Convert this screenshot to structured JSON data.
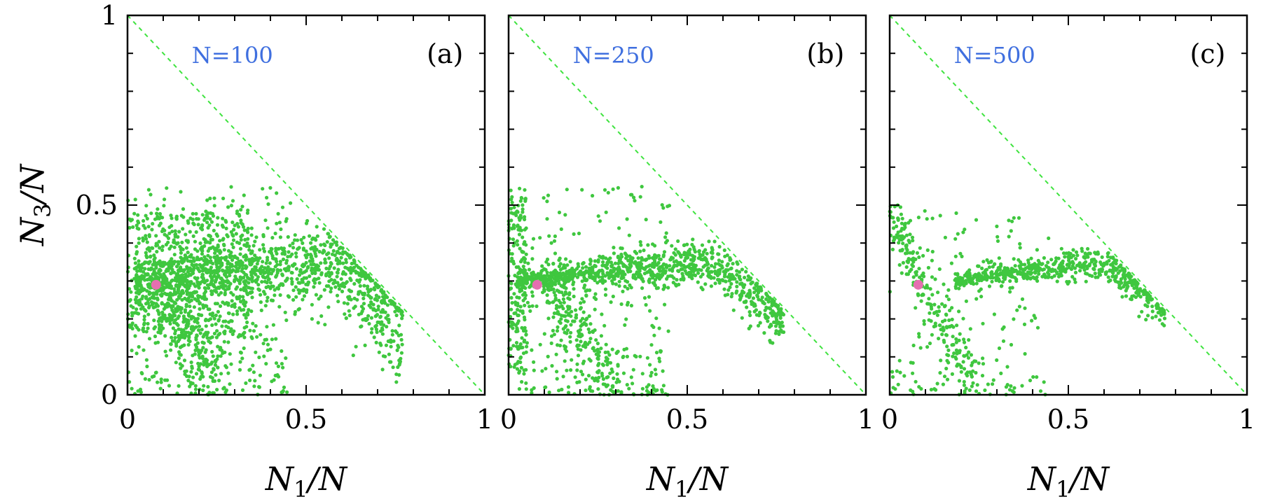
{
  "colors": {
    "points": "#3fc73f",
    "reference_line": "#3fe33f",
    "highlight": "#e56fb0",
    "annotation": "#3f6fdf",
    "axes": "#000000"
  },
  "chart_data": [
    {
      "type": "scatter",
      "panel_label": "(a)",
      "annotation": "N=100",
      "xlabel": "N1/N",
      "xlabel_main": "N",
      "xlabel_sub": "1",
      "xlabel_tail": "/N",
      "ylabel": "N3/N",
      "ylabel_main": "N",
      "ylabel_sub": "3",
      "ylabel_tail": "/N",
      "xlim": [
        0,
        1
      ],
      "ylim": [
        0,
        1
      ],
      "xticks": [
        "0",
        "0.5",
        "1"
      ],
      "yticks": [
        "0",
        "0.5",
        "1"
      ],
      "reference_line": {
        "from": [
          0,
          1
        ],
        "to": [
          1,
          0
        ],
        "style": "dashed"
      },
      "highlight_point": {
        "x": 0.08,
        "y": 0.29
      },
      "point_count": 2200,
      "clusters": [
        {
          "shape": "arc",
          "x_range": [
            0.02,
            0.77
          ],
          "peak": 0.34,
          "end_y": 0.18,
          "spread": 0.05,
          "share": 0.5
        },
        {
          "shape": "band",
          "x_range": [
            0.0,
            0.35
          ],
          "y_range": [
            0.15,
            0.48
          ],
          "share": 0.25
        },
        {
          "shape": "branch",
          "from": [
            0.1,
            0.28
          ],
          "to": [
            0.24,
            0.02
          ],
          "spread": 0.04,
          "share": 0.12
        },
        {
          "shape": "scatter",
          "x_range": [
            0.0,
            0.45
          ],
          "y_range": [
            0.0,
            0.55
          ],
          "share": 0.13
        }
      ]
    },
    {
      "type": "scatter",
      "panel_label": "(b)",
      "annotation": "N=250",
      "xlabel": "N1/N",
      "xlabel_main": "N",
      "xlabel_sub": "1",
      "xlabel_tail": "/N",
      "xlim": [
        0,
        1
      ],
      "ylim": [
        0,
        1
      ],
      "xticks": [
        "0",
        "0.5",
        "1"
      ],
      "reference_line": {
        "from": [
          0,
          1
        ],
        "to": [
          1,
          0
        ],
        "style": "dashed"
      },
      "highlight_point": {
        "x": 0.08,
        "y": 0.29
      },
      "point_count": 1600,
      "clusters": [
        {
          "shape": "arc",
          "x_range": [
            0.02,
            0.77
          ],
          "peak": 0.34,
          "end_y": 0.2,
          "spread": 0.025,
          "share": 0.6
        },
        {
          "shape": "branch",
          "from": [
            0.12,
            0.28
          ],
          "to": [
            0.3,
            0.01
          ],
          "spread": 0.025,
          "share": 0.12
        },
        {
          "shape": "band",
          "x_range": [
            0.0,
            0.05
          ],
          "y_range": [
            0.05,
            0.52
          ],
          "share": 0.1
        },
        {
          "shape": "scatter",
          "x_range": [
            0.0,
            0.45
          ],
          "y_range": [
            0.0,
            0.55
          ],
          "share": 0.18
        }
      ]
    },
    {
      "type": "scatter",
      "panel_label": "(c)",
      "annotation": "N=500",
      "xlabel": "N1/N",
      "xlabel_main": "N",
      "xlabel_sub": "1",
      "xlabel_tail": "/N",
      "xlim": [
        0,
        1
      ],
      "ylim": [
        0,
        1
      ],
      "xticks": [
        "0",
        "0.5",
        "1"
      ],
      "reference_line": {
        "from": [
          0,
          1
        ],
        "to": [
          1,
          0
        ],
        "style": "dashed"
      },
      "highlight_point": {
        "x": 0.08,
        "y": 0.29
      },
      "point_count": 1000,
      "clusters": [
        {
          "shape": "arc",
          "x_range": [
            0.18,
            0.77
          ],
          "peak": 0.34,
          "end_y": 0.22,
          "spread": 0.02,
          "share": 0.6
        },
        {
          "shape": "branch",
          "from": [
            0.08,
            0.3
          ],
          "to": [
            0.25,
            0.02
          ],
          "spread": 0.02,
          "share": 0.12
        },
        {
          "shape": "branch",
          "from": [
            0.0,
            0.5
          ],
          "to": [
            0.08,
            0.3
          ],
          "spread": 0.015,
          "share": 0.1
        },
        {
          "shape": "scatter",
          "x_range": [
            0.0,
            0.45
          ],
          "y_range": [
            0.0,
            0.5
          ],
          "share": 0.18
        }
      ]
    }
  ]
}
